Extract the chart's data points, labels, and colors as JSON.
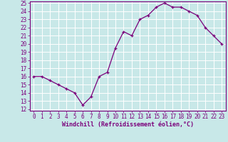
{
  "x": [
    0,
    1,
    2,
    3,
    4,
    5,
    6,
    7,
    8,
    9,
    10,
    11,
    12,
    13,
    14,
    15,
    16,
    17,
    18,
    19,
    20,
    21,
    22,
    23
  ],
  "y": [
    16,
    16,
    15.5,
    15,
    14.5,
    14,
    12.5,
    13.5,
    16,
    16.5,
    19.5,
    21.5,
    21,
    23,
    23.5,
    24.5,
    25,
    24.5,
    24.5,
    24,
    23.5,
    22,
    21,
    20
  ],
  "line_color": "#7b007b",
  "marker": "+",
  "bg_color": "#c8e8e8",
  "plot_bg_color": "#c8e8e8",
  "grid_color": "#ffffff",
  "xlabel": "Windchill (Refroidissement éolien,°C)",
  "xlabel_color": "#7b007b",
  "tick_color": "#7b007b",
  "spine_color": "#7b007b",
  "ylim": [
    12,
    25
  ],
  "xlim": [
    -0.5,
    23.5
  ],
  "yticks": [
    12,
    13,
    14,
    15,
    16,
    17,
    18,
    19,
    20,
    21,
    22,
    23,
    24,
    25
  ],
  "xticks": [
    0,
    1,
    2,
    3,
    4,
    5,
    6,
    7,
    8,
    9,
    10,
    11,
    12,
    13,
    14,
    15,
    16,
    17,
    18,
    19,
    20,
    21,
    22,
    23
  ],
  "tick_fontsize": 5.5,
  "xlabel_fontsize": 6.0,
  "marker_size": 3,
  "linewidth": 0.9
}
